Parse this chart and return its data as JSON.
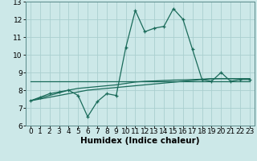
{
  "title": "",
  "xlabel": "Humidex (Indice chaleur)",
  "x_values": [
    0,
    1,
    2,
    3,
    4,
    5,
    6,
    7,
    8,
    9,
    10,
    11,
    12,
    13,
    14,
    15,
    16,
    17,
    18,
    19,
    20,
    21,
    22,
    23
  ],
  "line1": [
    7.4,
    7.6,
    7.8,
    7.9,
    8.0,
    7.7,
    6.5,
    7.35,
    7.8,
    7.7,
    10.4,
    12.5,
    11.3,
    11.5,
    11.6,
    12.6,
    12.0,
    10.3,
    8.6,
    8.5,
    9.0,
    8.5,
    8.6,
    8.6
  ],
  "line2": [
    8.5,
    8.5,
    8.5,
    8.5,
    8.5,
    8.5,
    8.5,
    8.5,
    8.5,
    8.5,
    8.5,
    8.5,
    8.5,
    8.5,
    8.5,
    8.5,
    8.5,
    8.5,
    8.5,
    8.5,
    8.5,
    8.5,
    8.5,
    8.5
  ],
  "line3": [
    7.4,
    7.5,
    7.6,
    7.7,
    7.8,
    7.9,
    8.0,
    8.05,
    8.1,
    8.15,
    8.2,
    8.25,
    8.3,
    8.35,
    8.4,
    8.45,
    8.5,
    8.55,
    8.6,
    8.65,
    8.65,
    8.65,
    8.65,
    8.65
  ],
  "line4": [
    7.4,
    7.55,
    7.7,
    7.85,
    8.0,
    8.1,
    8.15,
    8.2,
    8.25,
    8.3,
    8.38,
    8.46,
    8.5,
    8.52,
    8.55,
    8.57,
    8.58,
    8.6,
    8.62,
    8.64,
    8.65,
    8.65,
    8.65,
    8.65
  ],
  "line_color": "#1a6b5a",
  "bg_color": "#cce8e8",
  "grid_color": "#aacfcf",
  "ylim": [
    6,
    13
  ],
  "xlim": [
    -0.5,
    23.5
  ],
  "yticks": [
    6,
    7,
    8,
    9,
    10,
    11,
    12,
    13
  ],
  "xticks": [
    0,
    1,
    2,
    3,
    4,
    5,
    6,
    7,
    8,
    9,
    10,
    11,
    12,
    13,
    14,
    15,
    16,
    17,
    18,
    19,
    20,
    21,
    22,
    23
  ],
  "tick_fontsize": 6.5,
  "label_fontsize": 7.5
}
